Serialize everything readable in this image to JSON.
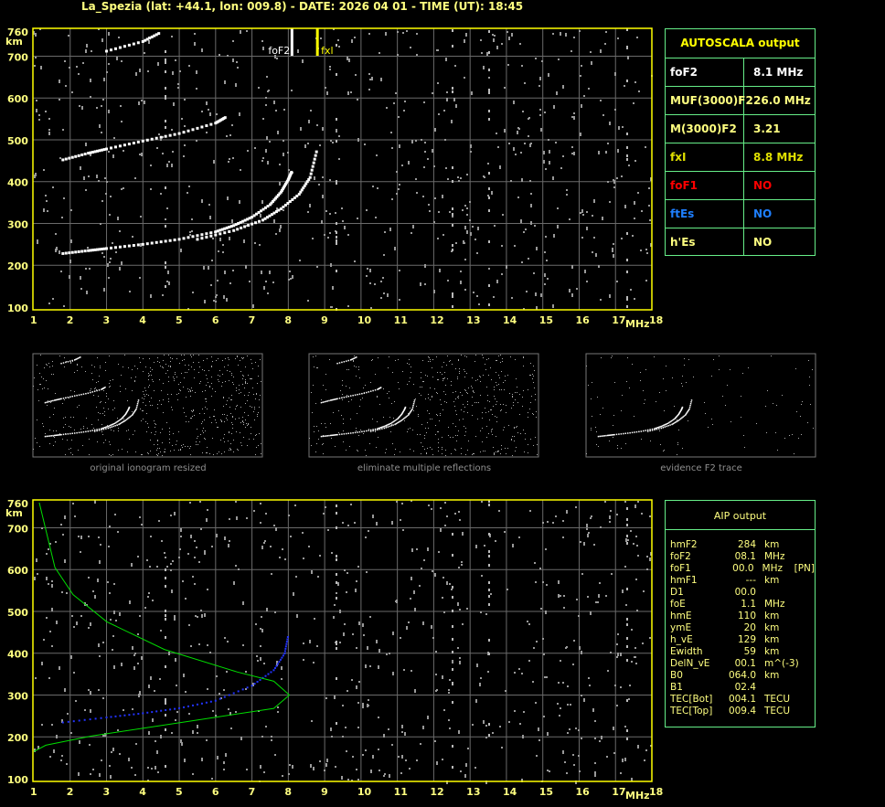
{
  "title": "La_Spezia (lat: +44.1, lon: 009.8) - DATE: 2026 04 01 - TIME (UT): 18:45",
  "colors": {
    "frame": "#ffff00",
    "grid": "#6a6a6a",
    "table_border": "#66ee88",
    "trace": "#ffffff",
    "noise": "#9a9a9a",
    "profile": "#00dd00",
    "fitted_trace": "#2233ff",
    "fxl": "#ffff00"
  },
  "chart_data": [
    {
      "type": "scatter",
      "title": "",
      "xlabel": "MHz",
      "ylabel": "km",
      "xlim": [
        1,
        18
      ],
      "ylim": [
        100,
        760
      ],
      "grid": true,
      "x_ticks": [
        "1",
        "2",
        "3",
        "4",
        "5",
        "6",
        "7",
        "8",
        "9",
        "10",
        "11",
        "12",
        "13",
        "14",
        "15",
        "16",
        "17",
        "18"
      ],
      "y_ticks": [
        "100",
        "200",
        "300",
        "400",
        "500",
        "600",
        "700",
        "760"
      ],
      "markers": [
        {
          "label": "foF2",
          "x": 8.1,
          "color": "#ffffff"
        },
        {
          "label": "fxl",
          "x": 8.8,
          "color": "#ffff00"
        }
      ],
      "traces": [
        {
          "points": [
            [
              1.8,
              228
            ],
            [
              2.5,
              235
            ],
            [
              3,
              240
            ],
            [
              4,
              250
            ],
            [
              5,
              262
            ],
            [
              6,
              280
            ],
            [
              6.5,
              295
            ],
            [
              7,
              315
            ],
            [
              7.5,
              345
            ],
            [
              7.8,
              375
            ],
            [
              8.0,
              405
            ],
            [
              8.1,
              425
            ]
          ]
        },
        {
          "points": [
            [
              5.5,
              262
            ],
            [
              6.5,
              283
            ],
            [
              7.3,
              308
            ],
            [
              7.8,
              335
            ],
            [
              8.3,
              370
            ],
            [
              8.6,
              410
            ],
            [
              8.8,
              480
            ]
          ]
        },
        {
          "points": [
            [
              1.8,
              452
            ],
            [
              2.5,
              468
            ],
            [
              3,
              478
            ],
            [
              4,
              497
            ],
            [
              5,
              515
            ],
            [
              6,
              540
            ],
            [
              6.3,
              555
            ]
          ]
        },
        {
          "points": [
            [
              3,
              712
            ],
            [
              4,
              735
            ],
            [
              4.5,
              757
            ]
          ]
        }
      ]
    },
    {
      "type": "scatter",
      "title": "",
      "xlabel": "MHz",
      "ylabel": "km",
      "xlim": [
        1,
        18
      ],
      "ylim": [
        100,
        760
      ],
      "grid": true,
      "x_ticks": [
        "1",
        "2",
        "3",
        "4",
        "5",
        "6",
        "7",
        "8",
        "9",
        "10",
        "11",
        "12",
        "13",
        "14",
        "15",
        "16",
        "17",
        "18"
      ],
      "y_ticks": [
        "100",
        "200",
        "300",
        "400",
        "500",
        "600",
        "700",
        "760"
      ],
      "fitted_trace": [
        [
          1.8,
          230
        ],
        [
          3,
          242
        ],
        [
          4,
          252
        ],
        [
          5,
          264
        ],
        [
          6,
          282
        ],
        [
          7,
          318
        ],
        [
          7.6,
          355
        ],
        [
          7.9,
          395
        ],
        [
          8.0,
          440
        ]
      ],
      "profile": [
        [
          1.15,
          760
        ],
        [
          1.58,
          605
        ],
        [
          2.08,
          540
        ],
        [
          3.01,
          475
        ],
        [
          4.59,
          409
        ],
        [
          6.6,
          355
        ],
        [
          7.6,
          333
        ],
        [
          8.03,
          300
        ],
        [
          7.6,
          268
        ],
        [
          5.1,
          235
        ],
        [
          2.58,
          202
        ],
        [
          1.33,
          180
        ],
        [
          1.0,
          165
        ]
      ]
    }
  ],
  "thumbnails": [
    {
      "caption": "original ionogram resized"
    },
    {
      "caption": "eliminate multiple reflections"
    },
    {
      "caption": "evidence F2 trace"
    }
  ],
  "autoscala": {
    "title": "AUTOSCALA output",
    "rows": [
      {
        "key": "foF2",
        "value": "8.1 MHz",
        "color": "#ffffff"
      },
      {
        "key": "MUF(3000)F2",
        "value": "26.0 MHz",
        "color": "#ffff80"
      },
      {
        "key": "M(3000)F2",
        "value": "3.21",
        "color": "#ffff80"
      },
      {
        "key": "fxI",
        "value": "8.8 MHz",
        "color": "#e0e000"
      },
      {
        "key": "foF1",
        "value": "NO",
        "color": "#ff0000"
      },
      {
        "key": "ftEs",
        "value": "NO",
        "color": "#1e7fff"
      },
      {
        "key": "h'Es",
        "value": "NO",
        "color": "#ffff80"
      }
    ]
  },
  "aip": {
    "title": "AIP output",
    "rows": [
      {
        "name": "hmF2",
        "value": "284",
        "unit": "km",
        "note": ""
      },
      {
        "name": "foF2",
        "value": "08.1",
        "unit": "MHz",
        "note": ""
      },
      {
        "name": "foF1",
        "value": "00.0",
        "unit": "MHz",
        "note": "[PN]"
      },
      {
        "name": "hmF1",
        "value": "---",
        "unit": "km",
        "note": ""
      },
      {
        "name": "D1",
        "value": "00.0",
        "unit": "",
        "note": ""
      },
      {
        "name": "foE",
        "value": "1.1",
        "unit": "MHz",
        "note": ""
      },
      {
        "name": "hmE",
        "value": "110",
        "unit": "km",
        "note": ""
      },
      {
        "name": "ymE",
        "value": "20",
        "unit": "km",
        "note": ""
      },
      {
        "name": "h_vE",
        "value": "129",
        "unit": "km",
        "note": ""
      },
      {
        "name": "Ewidth",
        "value": "59",
        "unit": "km",
        "note": ""
      },
      {
        "name": "DelN_vE",
        "value": "00.1",
        "unit": "m^(-3)",
        "note": ""
      },
      {
        "name": "B0",
        "value": "064.0",
        "unit": "km",
        "note": ""
      },
      {
        "name": "B1",
        "value": "02.4",
        "unit": "",
        "note": ""
      },
      {
        "name": "TEC[Bot]",
        "value": "004.1",
        "unit": "TECU",
        "note": ""
      },
      {
        "name": "TEC[Top]",
        "value": "009.4",
        "unit": "TECU",
        "note": ""
      }
    ]
  }
}
